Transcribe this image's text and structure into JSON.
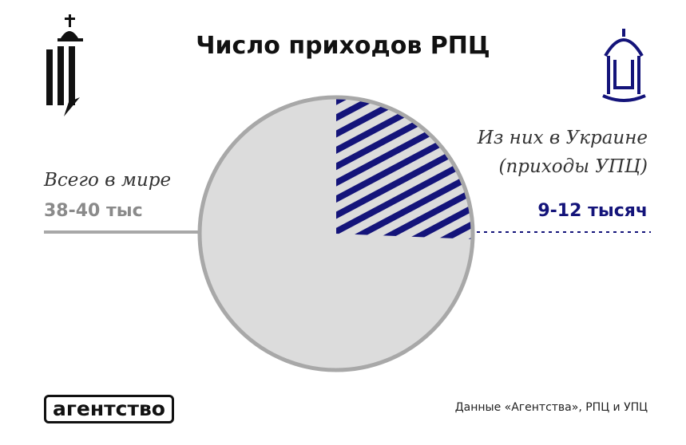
{
  "chart_data": {
    "type": "pie",
    "title": "Число приходов РПЦ",
    "categories": [
      "Всего в мире",
      "Из них в Украине (приходы УПЦ)"
    ],
    "values": [
      39,
      10
    ],
    "value_labels": [
      "38-40 тыс",
      "9-12 тысяч"
    ],
    "colors": [
      "#dcdcdc",
      "#14147a"
    ]
  },
  "footer": {
    "logo": "агентство",
    "source": "Данные «Агентства», РПЦ и УПЦ"
  }
}
